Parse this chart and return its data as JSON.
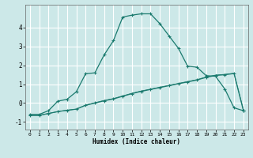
{
  "xlabel": "Humidex (Indice chaleur)",
  "background_color": "#cce8e8",
  "grid_color": "#ffffff",
  "line_color": "#1a7a6e",
  "x_ticks": [
    0,
    1,
    2,
    3,
    4,
    5,
    6,
    7,
    8,
    9,
    10,
    11,
    12,
    13,
    14,
    15,
    16,
    17,
    18,
    19,
    20,
    21,
    22,
    23
  ],
  "y_ticks": [
    -1,
    0,
    1,
    2,
    3,
    4
  ],
  "ylim": [
    -1.4,
    5.2
  ],
  "xlim": [
    -0.5,
    23.5
  ],
  "curve1_x": [
    0,
    1,
    2,
    3,
    4,
    5,
    6,
    7,
    8,
    9,
    10,
    11,
    12,
    13,
    14,
    15,
    16,
    17,
    18,
    19,
    20,
    21,
    22,
    23
  ],
  "curve1_y": [
    -0.6,
    -0.6,
    -0.4,
    0.1,
    0.2,
    0.6,
    1.55,
    1.6,
    2.55,
    3.3,
    4.55,
    4.65,
    4.72,
    4.72,
    4.2,
    3.55,
    2.9,
    1.95,
    1.9,
    1.45,
    1.42,
    0.75,
    -0.25,
    -0.4
  ],
  "curve2_x": [
    0,
    1,
    2,
    3,
    4,
    5,
    6,
    7,
    8,
    9,
    10,
    11,
    12,
    13,
    14,
    15,
    16,
    17,
    18,
    19,
    20,
    21,
    22,
    23
  ],
  "curve2_y": [
    -0.65,
    -0.65,
    -0.55,
    -0.45,
    -0.38,
    -0.32,
    -0.12,
    0.0,
    0.12,
    0.22,
    0.36,
    0.5,
    0.62,
    0.72,
    0.82,
    0.92,
    1.02,
    1.12,
    1.22,
    1.36,
    1.46,
    1.5,
    1.56,
    -0.38
  ],
  "curve3_x": [
    0,
    1,
    2,
    3,
    4,
    5,
    6,
    7,
    8,
    9,
    10,
    11,
    12,
    13,
    14,
    15,
    16,
    17,
    18,
    19,
    20,
    21,
    22,
    23
  ],
  "curve3_y": [
    -0.65,
    -0.65,
    -0.55,
    -0.45,
    -0.38,
    -0.32,
    -0.1,
    0.02,
    0.14,
    0.24,
    0.38,
    0.52,
    0.64,
    0.74,
    0.84,
    0.94,
    1.04,
    1.14,
    1.24,
    1.38,
    1.48,
    1.52,
    1.58,
    -0.32
  ]
}
